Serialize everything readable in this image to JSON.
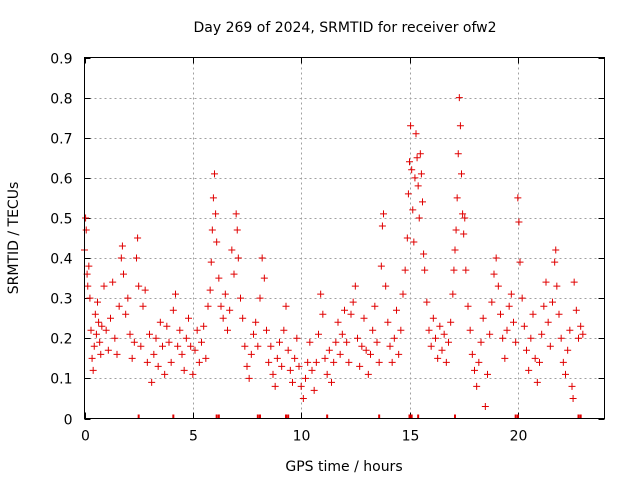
{
  "chart_data": {
    "type": "scatter",
    "title": "Day 269 of 2024, SRMTID for receiver ofw2",
    "xlabel": "GPS time / hours",
    "ylabel": "SRMTID / TECUs",
    "xlim": [
      0,
      24
    ],
    "ylim": [
      0,
      0.9
    ],
    "xticks": [
      0,
      5,
      10,
      15,
      20
    ],
    "yticks": [
      0,
      0.1,
      0.2,
      0.3,
      0.4,
      0.5,
      0.6,
      0.7,
      0.8,
      0.9
    ],
    "grid": true,
    "marker": "+",
    "color": "#e00000",
    "series": [
      {
        "name": "ofw2",
        "points": [
          [
            0.0,
            0.42
          ],
          [
            0.05,
            0.5
          ],
          [
            0.08,
            0.47
          ],
          [
            0.12,
            0.36
          ],
          [
            0.15,
            0.33
          ],
          [
            0.2,
            0.38
          ],
          [
            0.25,
            0.3
          ],
          [
            0.3,
            0.22
          ],
          [
            0.35,
            0.15
          ],
          [
            0.4,
            0.12
          ],
          [
            0.45,
            0.18
          ],
          [
            0.5,
            0.26
          ],
          [
            0.55,
            0.21
          ],
          [
            0.6,
            0.29
          ],
          [
            0.65,
            0.24
          ],
          [
            0.7,
            0.19
          ],
          [
            0.75,
            0.16
          ],
          [
            0.8,
            0.23
          ],
          [
            0.9,
            0.33
          ],
          [
            1.0,
            0.22
          ],
          [
            1.1,
            0.17
          ],
          [
            1.2,
            0.25
          ],
          [
            1.3,
            0.34
          ],
          [
            1.4,
            0.2
          ],
          [
            1.5,
            0.16
          ],
          [
            1.6,
            0.28
          ],
          [
            1.7,
            0.4
          ],
          [
            1.75,
            0.43
          ],
          [
            1.8,
            0.36
          ],
          [
            1.9,
            0.26
          ],
          [
            2.0,
            0.3
          ],
          [
            2.1,
            0.21
          ],
          [
            2.2,
            0.15
          ],
          [
            2.3,
            0.19
          ],
          [
            2.4,
            0.4
          ],
          [
            2.45,
            0.45
          ],
          [
            2.5,
            0.33
          ],
          [
            2.6,
            0.18
          ],
          [
            2.7,
            0.28
          ],
          [
            2.8,
            0.32
          ],
          [
            2.9,
            0.14
          ],
          [
            3.0,
            0.21
          ],
          [
            3.1,
            0.09
          ],
          [
            3.2,
            0.16
          ],
          [
            3.3,
            0.2
          ],
          [
            3.4,
            0.13
          ],
          [
            3.5,
            0.24
          ],
          [
            3.6,
            0.18
          ],
          [
            3.7,
            0.11
          ],
          [
            3.8,
            0.23
          ],
          [
            3.9,
            0.19
          ],
          [
            4.0,
            0.14
          ],
          [
            4.1,
            0.27
          ],
          [
            4.2,
            0.31
          ],
          [
            4.3,
            0.18
          ],
          [
            4.4,
            0.22
          ],
          [
            4.5,
            0.16
          ],
          [
            4.6,
            0.12
          ],
          [
            4.7,
            0.2
          ],
          [
            4.8,
            0.25
          ],
          [
            4.9,
            0.18
          ],
          [
            5.0,
            0.11
          ],
          [
            5.1,
            0.17
          ],
          [
            5.2,
            0.22
          ],
          [
            5.3,
            0.14
          ],
          [
            5.4,
            0.19
          ],
          [
            5.5,
            0.23
          ],
          [
            5.6,
            0.15
          ],
          [
            5.7,
            0.28
          ],
          [
            5.8,
            0.32
          ],
          [
            5.85,
            0.39
          ],
          [
            5.9,
            0.47
          ],
          [
            5.95,
            0.55
          ],
          [
            6.0,
            0.61
          ],
          [
            6.05,
            0.51
          ],
          [
            6.1,
            0.44
          ],
          [
            6.2,
            0.35
          ],
          [
            6.3,
            0.28
          ],
          [
            6.4,
            0.25
          ],
          [
            6.5,
            0.31
          ],
          [
            6.6,
            0.22
          ],
          [
            6.7,
            0.27
          ],
          [
            6.8,
            0.42
          ],
          [
            6.9,
            0.36
          ],
          [
            7.0,
            0.51
          ],
          [
            7.05,
            0.47
          ],
          [
            7.1,
            0.4
          ],
          [
            7.2,
            0.3
          ],
          [
            7.3,
            0.25
          ],
          [
            7.4,
            0.18
          ],
          [
            7.5,
            0.13
          ],
          [
            7.6,
            0.1
          ],
          [
            7.7,
            0.16
          ],
          [
            7.8,
            0.21
          ],
          [
            7.9,
            0.24
          ],
          [
            8.0,
            0.18
          ],
          [
            8.1,
            0.3
          ],
          [
            8.2,
            0.4
          ],
          [
            8.3,
            0.35
          ],
          [
            8.4,
            0.22
          ],
          [
            8.5,
            0.14
          ],
          [
            8.6,
            0.18
          ],
          [
            8.7,
            0.11
          ],
          [
            8.8,
            0.08
          ],
          [
            8.9,
            0.15
          ],
          [
            9.0,
            0.19
          ],
          [
            9.1,
            0.13
          ],
          [
            9.2,
            0.22
          ],
          [
            9.3,
            0.28
          ],
          [
            9.4,
            0.17
          ],
          [
            9.5,
            0.12
          ],
          [
            9.6,
            0.09
          ],
          [
            9.7,
            0.15
          ],
          [
            9.8,
            0.2
          ],
          [
            9.9,
            0.13
          ],
          [
            10.0,
            0.08
          ],
          [
            10.1,
            0.05
          ],
          [
            10.2,
            0.1
          ],
          [
            10.3,
            0.14
          ],
          [
            10.4,
            0.19
          ],
          [
            10.5,
            0.12
          ],
          [
            10.6,
            0.07
          ],
          [
            10.7,
            0.14
          ],
          [
            10.8,
            0.21
          ],
          [
            10.9,
            0.31
          ],
          [
            11.0,
            0.26
          ],
          [
            11.1,
            0.15
          ],
          [
            11.2,
            0.11
          ],
          [
            11.3,
            0.17
          ],
          [
            11.4,
            0.09
          ],
          [
            11.5,
            0.14
          ],
          [
            11.6,
            0.19
          ],
          [
            11.7,
            0.24
          ],
          [
            11.8,
            0.16
          ],
          [
            11.9,
            0.21
          ],
          [
            12.0,
            0.27
          ],
          [
            12.1,
            0.19
          ],
          [
            12.2,
            0.14
          ],
          [
            12.3,
            0.26
          ],
          [
            12.4,
            0.29
          ],
          [
            12.5,
            0.33
          ],
          [
            12.6,
            0.2
          ],
          [
            12.7,
            0.13
          ],
          [
            12.8,
            0.18
          ],
          [
            12.9,
            0.25
          ],
          [
            13.0,
            0.17
          ],
          [
            13.1,
            0.11
          ],
          [
            13.2,
            0.16
          ],
          [
            13.3,
            0.22
          ],
          [
            13.4,
            0.28
          ],
          [
            13.5,
            0.19
          ],
          [
            13.6,
            0.14
          ],
          [
            13.7,
            0.38
          ],
          [
            13.75,
            0.48
          ],
          [
            13.8,
            0.51
          ],
          [
            13.9,
            0.33
          ],
          [
            14.0,
            0.24
          ],
          [
            14.1,
            0.18
          ],
          [
            14.2,
            0.14
          ],
          [
            14.3,
            0.2
          ],
          [
            14.4,
            0.27
          ],
          [
            14.5,
            0.16
          ],
          [
            14.6,
            0.22
          ],
          [
            14.7,
            0.31
          ],
          [
            14.8,
            0.37
          ],
          [
            14.9,
            0.45
          ],
          [
            14.95,
            0.56
          ],
          [
            15.0,
            0.64
          ],
          [
            15.05,
            0.73
          ],
          [
            15.1,
            0.62
          ],
          [
            15.15,
            0.52
          ],
          [
            15.2,
            0.44
          ],
          [
            15.25,
            0.6
          ],
          [
            15.3,
            0.71
          ],
          [
            15.35,
            0.65
          ],
          [
            15.4,
            0.58
          ],
          [
            15.45,
            0.5
          ],
          [
            15.5,
            0.66
          ],
          [
            15.55,
            0.61
          ],
          [
            15.6,
            0.54
          ],
          [
            15.65,
            0.41
          ],
          [
            15.7,
            0.37
          ],
          [
            15.8,
            0.29
          ],
          [
            15.9,
            0.22
          ],
          [
            16.0,
            0.18
          ],
          [
            16.1,
            0.25
          ],
          [
            16.2,
            0.2
          ],
          [
            16.3,
            0.15
          ],
          [
            16.4,
            0.23
          ],
          [
            16.5,
            0.17
          ],
          [
            16.6,
            0.21
          ],
          [
            16.7,
            0.14
          ],
          [
            16.8,
            0.19
          ],
          [
            16.9,
            0.24
          ],
          [
            17.0,
            0.31
          ],
          [
            17.05,
            0.37
          ],
          [
            17.1,
            0.42
          ],
          [
            17.15,
            0.47
          ],
          [
            17.2,
            0.55
          ],
          [
            17.25,
            0.66
          ],
          [
            17.3,
            0.8
          ],
          [
            17.35,
            0.73
          ],
          [
            17.4,
            0.61
          ],
          [
            17.45,
            0.51
          ],
          [
            17.5,
            0.46
          ],
          [
            17.55,
            0.5
          ],
          [
            17.6,
            0.37
          ],
          [
            17.7,
            0.28
          ],
          [
            17.8,
            0.22
          ],
          [
            17.9,
            0.16
          ],
          [
            18.0,
            0.12
          ],
          [
            18.1,
            0.08
          ],
          [
            18.2,
            0.14
          ],
          [
            18.3,
            0.19
          ],
          [
            18.4,
            0.25
          ],
          [
            18.5,
            0.03
          ],
          [
            18.6,
            0.11
          ],
          [
            18.7,
            0.21
          ],
          [
            18.8,
            0.29
          ],
          [
            18.9,
            0.36
          ],
          [
            19.0,
            0.4
          ],
          [
            19.1,
            0.33
          ],
          [
            19.2,
            0.26
          ],
          [
            19.3,
            0.2
          ],
          [
            19.4,
            0.15
          ],
          [
            19.5,
            0.22
          ],
          [
            19.6,
            0.28
          ],
          [
            19.7,
            0.31
          ],
          [
            19.8,
            0.24
          ],
          [
            19.9,
            0.19
          ],
          [
            20.0,
            0.55
          ],
          [
            20.05,
            0.49
          ],
          [
            20.1,
            0.39
          ],
          [
            20.2,
            0.3
          ],
          [
            20.3,
            0.23
          ],
          [
            20.4,
            0.17
          ],
          [
            20.5,
            0.12
          ],
          [
            20.6,
            0.2
          ],
          [
            20.7,
            0.26
          ],
          [
            20.8,
            0.15
          ],
          [
            20.9,
            0.09
          ],
          [
            21.0,
            0.14
          ],
          [
            21.1,
            0.21
          ],
          [
            21.2,
            0.28
          ],
          [
            21.3,
            0.34
          ],
          [
            21.4,
            0.24
          ],
          [
            21.5,
            0.18
          ],
          [
            21.6,
            0.29
          ],
          [
            21.7,
            0.39
          ],
          [
            21.75,
            0.42
          ],
          [
            21.8,
            0.33
          ],
          [
            21.9,
            0.26
          ],
          [
            22.0,
            0.2
          ],
          [
            22.1,
            0.14
          ],
          [
            22.2,
            0.11
          ],
          [
            22.3,
            0.17
          ],
          [
            22.4,
            0.22
          ],
          [
            22.5,
            0.08
          ],
          [
            22.55,
            0.05
          ],
          [
            22.6,
            0.34
          ],
          [
            22.7,
            0.27
          ],
          [
            22.8,
            0.2
          ],
          [
            22.9,
            0.23
          ],
          [
            23.0,
            0.21
          ]
        ]
      }
    ],
    "zero_markers_x": [
      2.5,
      4.1,
      6.1,
      6.2,
      8.0,
      8.1,
      9.3,
      9.4,
      11.2,
      13.6,
      15.0,
      15.1,
      15.4,
      17.1,
      19.9,
      20.0,
      22.8,
      22.9
    ]
  }
}
